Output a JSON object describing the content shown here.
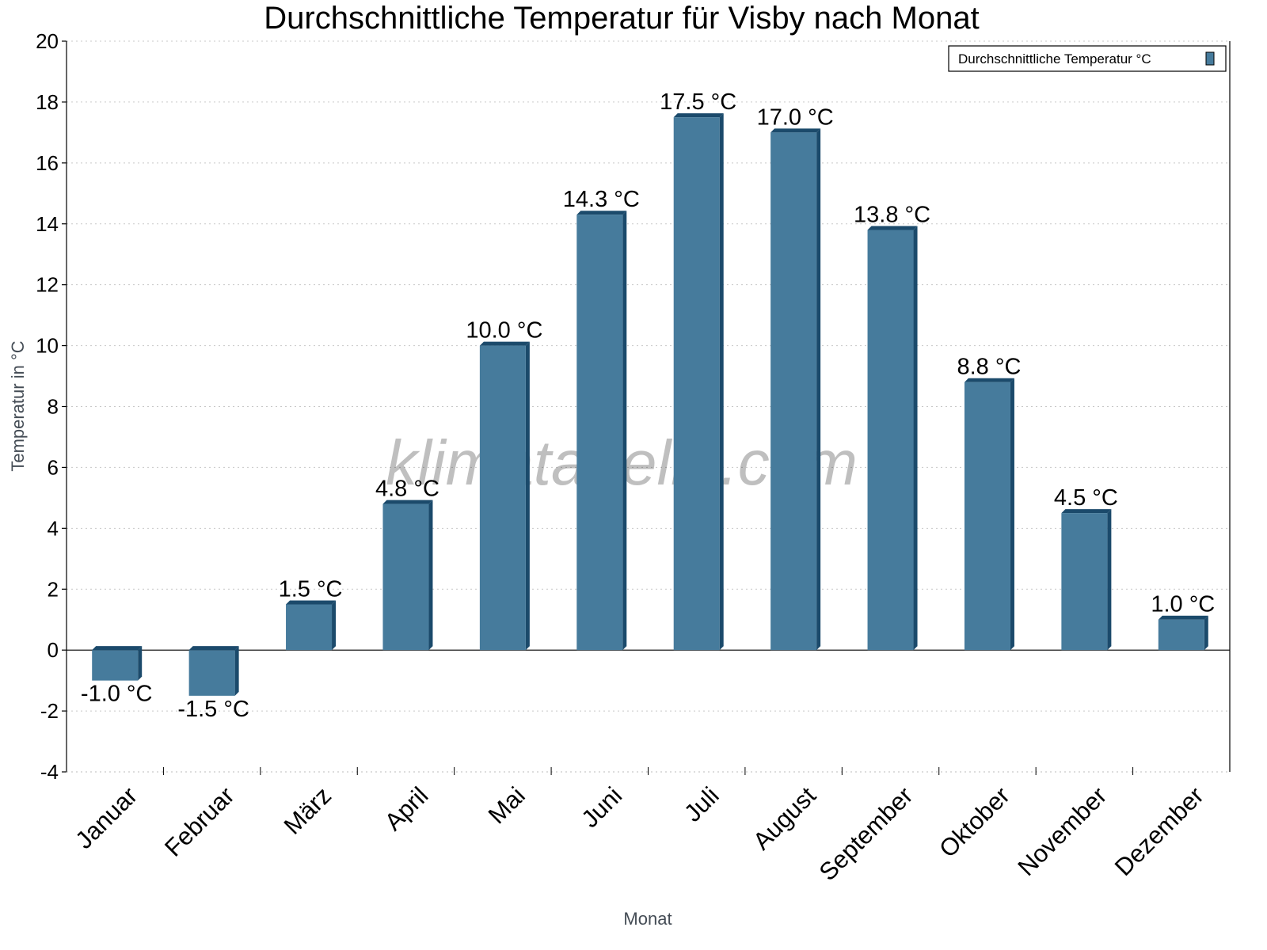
{
  "chart_data": {
    "type": "bar",
    "title": "Durchschnittliche Temperatur für Visby nach Monat",
    "xlabel": "Monat",
    "ylabel": "Temperatur in °C",
    "ylim": [
      -4,
      20
    ],
    "yticks": [
      -4,
      -2,
      0,
      2,
      4,
      6,
      8,
      10,
      12,
      14,
      16,
      18,
      20
    ],
    "grid": true,
    "legend_position": "top-right",
    "categories": [
      "Januar",
      "Februar",
      "März",
      "April",
      "Mai",
      "Juni",
      "Juli",
      "August",
      "September",
      "Oktober",
      "November",
      "Dezember"
    ],
    "series": [
      {
        "name": "Durchschnittliche Temperatur °C",
        "values": [
          -1.0,
          -1.5,
          1.5,
          4.8,
          10.0,
          14.3,
          17.5,
          17.0,
          13.8,
          8.8,
          4.5,
          1.0
        ],
        "labels": [
          "-1.0 °C",
          "-1.5 °C",
          "1.5 °C",
          "4.8 °C",
          "10.0 °C",
          "14.3 °C",
          "17.5 °C",
          "17.0 °C",
          "13.8 °C",
          "8.8 °C",
          "4.5 °C",
          "1.0 °C"
        ]
      }
    ],
    "colors": {
      "bar_front": "#467b9c",
      "bar_side": "#1b4a6b",
      "grid": "#c8c8c8"
    }
  },
  "watermark": "klimatabelle.com"
}
